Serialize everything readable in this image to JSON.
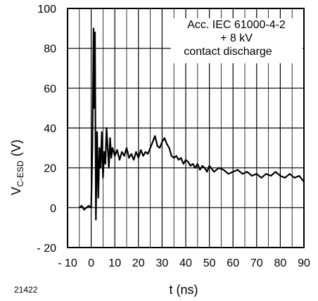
{
  "chart_data": {
    "type": "line",
    "title": "",
    "xlabel": "t (ns)",
    "ylabel_main": "V",
    "ylabel_sub": "C-ESD",
    "ylabel_unit": "(V)",
    "xlim": [
      -10,
      90
    ],
    "ylim": [
      -20,
      100
    ],
    "x_major_ticks": [
      -10,
      0,
      10,
      20,
      30,
      40,
      50,
      60,
      70,
      80,
      90
    ],
    "x_tick_labels": [
      "- 10",
      "0",
      "10",
      "20",
      "30",
      "40",
      "50",
      "60",
      "70",
      "80",
      "90"
    ],
    "y_major_ticks": [
      -20,
      0,
      20,
      40,
      60,
      80,
      100
    ],
    "y_tick_labels": [
      "- 20",
      "0",
      "20",
      "40",
      "60",
      "80",
      "100"
    ],
    "x_minor_step": 5,
    "grid": true,
    "legend": "none",
    "annotation": [
      "Acc. IEC 61000-4-2",
      "+ 8 kV",
      "contact discharge"
    ],
    "figure_id": "21422",
    "series": [
      {
        "color": "#000000",
        "x": [
          -5,
          -4,
          -3,
          -2,
          -1,
          0,
          0.5,
          1,
          1.3,
          1.6,
          2,
          2.5,
          3,
          3.5,
          4,
          4.5,
          5,
          5.5,
          6,
          6.5,
          7,
          7.5,
          8,
          8.5,
          9,
          10,
          11,
          12,
          13,
          14,
          15,
          16,
          17,
          18,
          19,
          20,
          21,
          22,
          23,
          24,
          25,
          26,
          27,
          28,
          29,
          30,
          31,
          32,
          33,
          34,
          35,
          36,
          37,
          38,
          39,
          40,
          41,
          42,
          43,
          44,
          45,
          46,
          47,
          48,
          49,
          50,
          52,
          54,
          56,
          58,
          60,
          62,
          64,
          66,
          68,
          70,
          72,
          74,
          76,
          78,
          80,
          82,
          84,
          86,
          88,
          90
        ],
        "y": [
          0,
          1,
          -1,
          0,
          1,
          0,
          30,
          90,
          50,
          88,
          -6,
          38,
          5,
          30,
          20,
          38,
          15,
          28,
          22,
          40,
          30,
          20,
          35,
          25,
          30,
          26,
          29,
          24,
          28,
          26,
          30,
          25,
          27,
          24,
          28,
          25,
          29,
          26,
          28,
          27,
          30,
          33,
          36,
          31,
          30,
          33,
          35,
          32,
          30,
          26,
          25,
          26,
          24,
          25,
          22,
          24,
          23,
          21,
          22,
          20,
          22,
          19,
          21,
          20,
          18,
          21,
          18,
          20,
          19,
          17,
          18,
          19,
          17,
          18,
          16,
          17,
          15,
          17,
          16,
          18,
          16,
          15,
          17,
          15,
          16,
          13
        ]
      }
    ]
  }
}
